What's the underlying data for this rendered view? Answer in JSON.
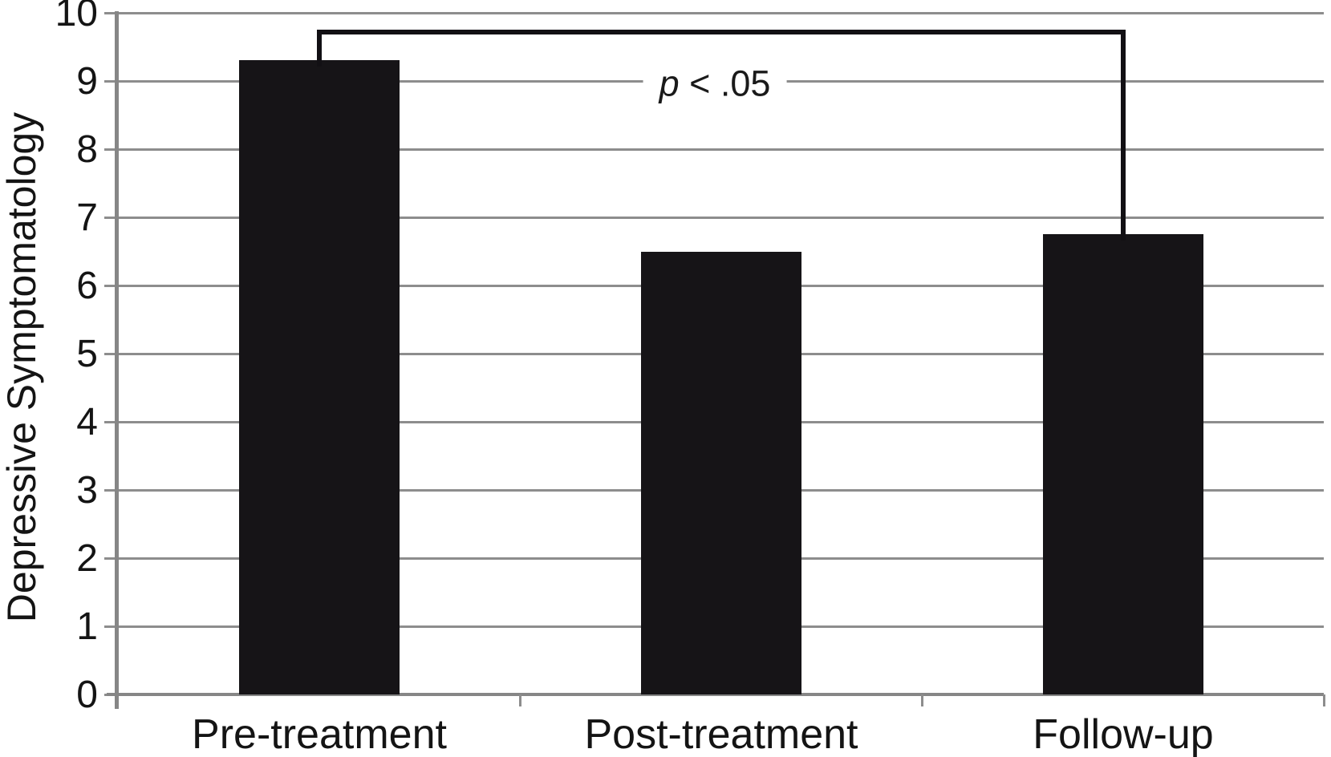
{
  "chart_data": {
    "type": "bar",
    "categories": [
      "Pre-treatment",
      "Post-treatment",
      "Follow-up"
    ],
    "values": [
      9.3,
      6.5,
      6.75
    ],
    "title": "",
    "xlabel": "",
    "ylabel": "Depressive Symptomatology",
    "ylim": [
      0,
      10
    ],
    "yticks": [
      "0",
      "1",
      "2",
      "3",
      "4",
      "5",
      "6",
      "7",
      "8",
      "9",
      "10"
    ],
    "grid": true,
    "legend": false,
    "significance": {
      "text": "p < .05",
      "symbol": "p",
      "comparison": "< .05",
      "from_category": "Pre-treatment",
      "to_category": "Follow-up",
      "bracket_top_value": 9.75
    }
  },
  "colors": {
    "bar": "#161417",
    "gridline": "#8d8d8d",
    "axis": "#868686",
    "bracket": "#121014",
    "text": "#141414",
    "background": "#ffffff"
  }
}
